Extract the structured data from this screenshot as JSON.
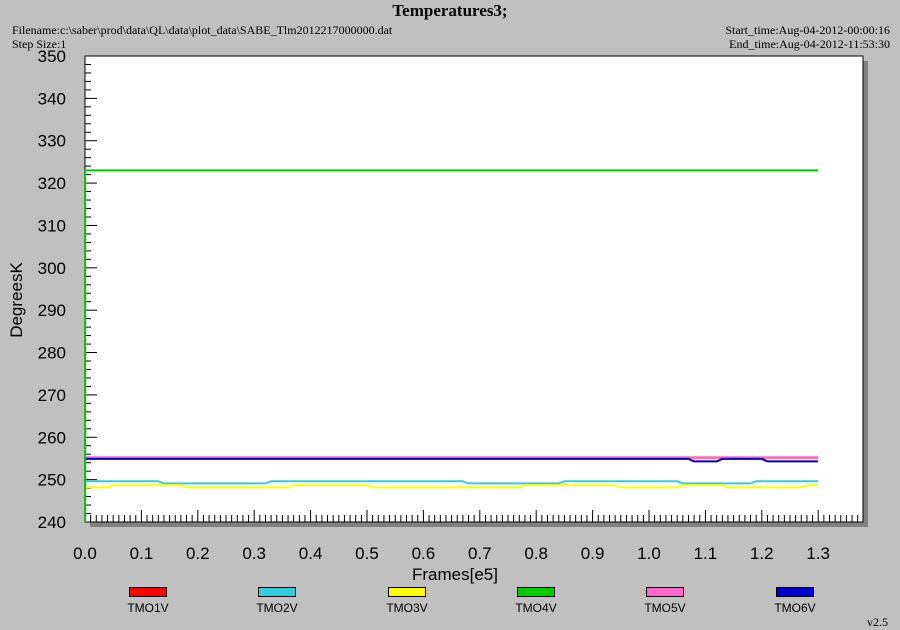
{
  "header": {
    "title": "Temperatures3;",
    "filename": "Filename:c:\\saber\\prod\\data\\QL\\data\\plot_data\\SABE_Tlm2012217000000.dat",
    "step_size": "Step Size:1",
    "start_time": "Start_time:Aug-04-2012-00:00:16",
    "end_time": "End_time:Aug-04-2012-11:53:30"
  },
  "version": "v2.5",
  "chart_data": {
    "type": "line",
    "title": "Temperatures3;",
    "xlabel": "Frames[e5]",
    "ylabel": "DegreesK",
    "xlim": [
      0.0,
      1.37
    ],
    "ylim": [
      240,
      350
    ],
    "xticks": [
      "0.0",
      "0.1",
      "0.2",
      "0.3",
      "0.4",
      "0.5",
      "0.6",
      "0.7",
      "0.8",
      "0.9",
      "1.0",
      "1.1",
      "1.2",
      "1.3"
    ],
    "yticks": [
      "240",
      "250",
      "260",
      "270",
      "280",
      "290",
      "300",
      "310",
      "320",
      "330",
      "340",
      "350"
    ],
    "grid": false,
    "legend_position": "bottom",
    "series": [
      {
        "name": "TMO1V",
        "color": "#ff0000",
        "x": [
          0.0,
          1.3
        ],
        "y": [
          255.2,
          255.2
        ]
      },
      {
        "name": "TMO2V",
        "color": "#33ccdd",
        "x": [
          0.0,
          0.13,
          0.14,
          0.32,
          0.33,
          0.67,
          0.68,
          0.84,
          0.85,
          1.05,
          1.06,
          1.18,
          1.19,
          1.3
        ],
        "y": [
          249.6,
          249.6,
          249.1,
          249.1,
          249.6,
          249.6,
          249.1,
          249.1,
          249.6,
          249.6,
          249.1,
          249.1,
          249.6,
          249.6
        ]
      },
      {
        "name": "TMO3V",
        "color": "#ffff00",
        "x": [
          0.0,
          0.04,
          0.05,
          0.17,
          0.18,
          0.36,
          0.37,
          0.5,
          0.51,
          0.77,
          0.78,
          0.94,
          0.95,
          1.05,
          1.06,
          1.13,
          1.14,
          1.27,
          1.28,
          1.3
        ],
        "y": [
          248.2,
          248.2,
          248.7,
          248.7,
          248.2,
          248.2,
          248.7,
          248.7,
          248.2,
          248.2,
          248.7,
          248.7,
          248.2,
          248.2,
          248.7,
          248.7,
          248.2,
          248.2,
          248.7,
          248.7
        ]
      },
      {
        "name": "TMO4V",
        "color": "#00cc00",
        "x": [
          0.0,
          1.3
        ],
        "y": [
          323.0,
          323.0
        ]
      },
      {
        "name": "TMO5V",
        "color": "#ff66cc",
        "x": [
          0.0,
          1.3
        ],
        "y": [
          255.3,
          255.3
        ]
      },
      {
        "name": "TMO6V",
        "color": "#0000cc",
        "x": [
          0.0,
          1.07,
          1.08,
          1.12,
          1.13,
          1.2,
          1.21,
          1.3
        ],
        "y": [
          254.9,
          254.9,
          254.3,
          254.3,
          254.9,
          254.9,
          254.3,
          254.3
        ]
      }
    ]
  }
}
